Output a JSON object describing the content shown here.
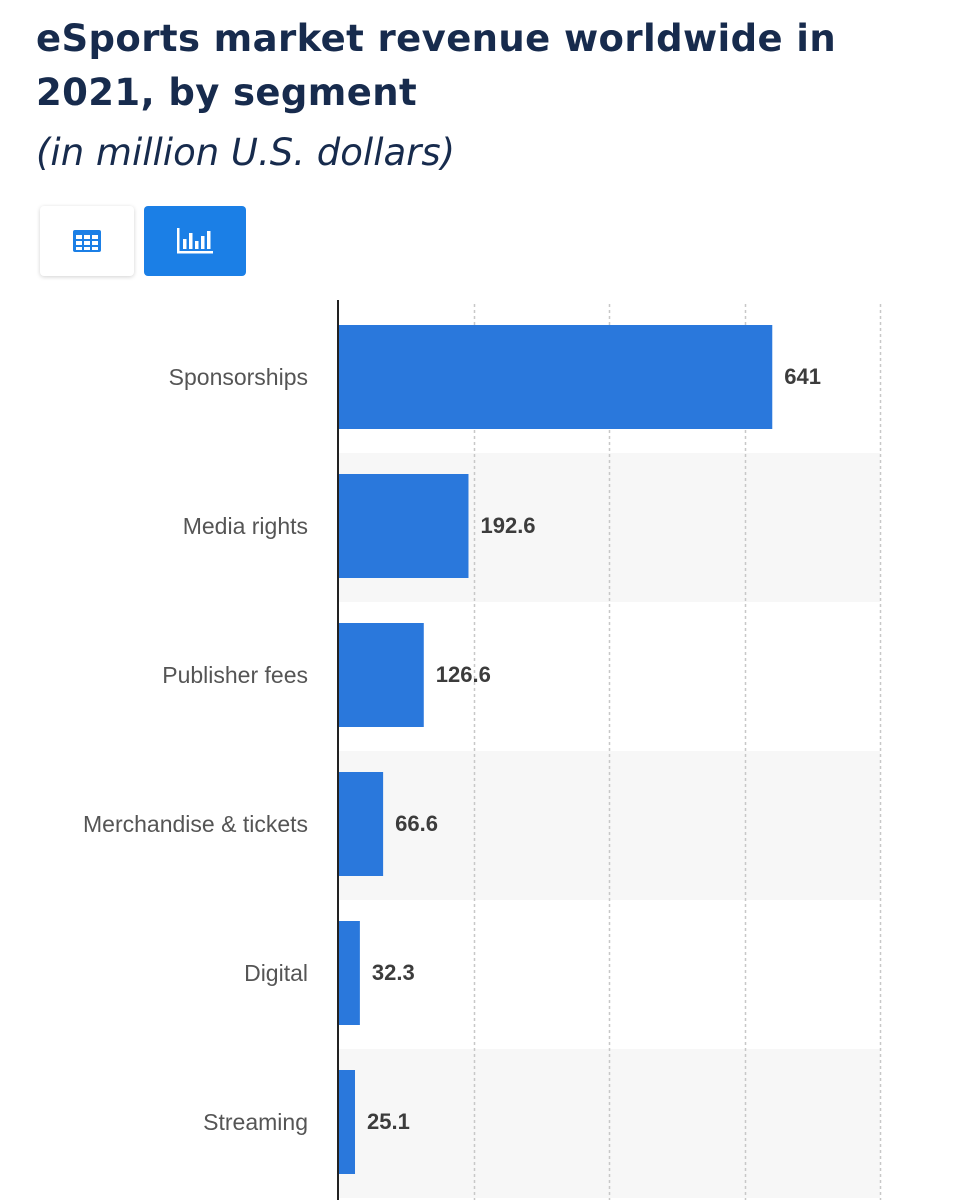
{
  "chart_data": {
    "type": "bar",
    "orientation": "horizontal",
    "title": "eSports market revenue worldwide in 2021, by segment",
    "subtitle": "(in million U.S. dollars)",
    "categories": [
      "Sponsorships",
      "Media rights",
      "Publisher fees",
      "Merchandise & tickets",
      "Digital",
      "Streaming"
    ],
    "values": [
      641,
      192.6,
      126.6,
      66.6,
      32.3,
      25.1
    ],
    "value_labels": [
      "641",
      "192.6",
      "126.6",
      "66.6",
      "32.3",
      "25.1"
    ],
    "xlim": [
      0,
      800
    ],
    "grid": true,
    "bar_color": "#2a78dc",
    "xlabel": "",
    "ylabel": ""
  },
  "controls": {
    "table_view_icon": "table-icon",
    "chart_view_icon": "bar-chart-icon"
  },
  "colors": {
    "title": "#172b4d",
    "active_button": "#1b7fe6",
    "band": "#f7f7f7"
  }
}
